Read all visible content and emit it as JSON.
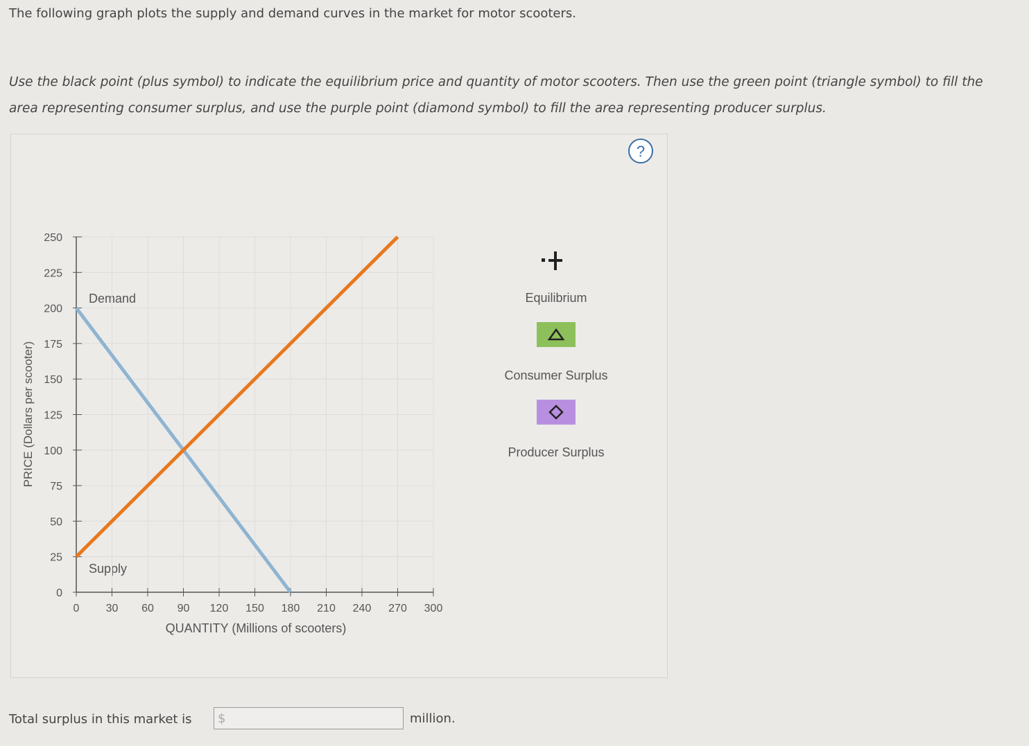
{
  "intro": "The following graph plots the supply and demand curves in the market for motor scooters.",
  "instructions": "Use the black point (plus symbol) to indicate the equilibrium price and quantity of motor scooters. Then use the green point (triangle symbol) to fill the area representing consumer surplus, and use the purple point (diamond symbol) to fill the area representing producer surplus.",
  "help": "?",
  "chart_data": {
    "type": "line",
    "x": [
      0,
      90,
      180,
      270
    ],
    "series": [
      {
        "name": "Demand",
        "color": "#8fb4d2",
        "values": [
          200,
          100,
          0,
          null
        ]
      },
      {
        "name": "Supply",
        "color": "#e8781e",
        "values": [
          25,
          100,
          175,
          250
        ]
      }
    ],
    "xlabel": "QUANTITY (Millions of scooters)",
    "ylabel": "PRICE (Dollars per scooter)",
    "xlim": [
      0,
      300
    ],
    "ylim": [
      0,
      250
    ],
    "xticks": [
      0,
      30,
      60,
      90,
      120,
      150,
      180,
      210,
      240,
      270,
      300
    ],
    "yticks": [
      0,
      25,
      50,
      75,
      100,
      125,
      150,
      175,
      200,
      225,
      250
    ],
    "grid": true
  },
  "tools": [
    {
      "label": "Equilibrium"
    },
    {
      "label": "Consumer Surplus"
    },
    {
      "label": "Producer Surplus"
    }
  ],
  "footer": {
    "text": "Total surplus in this market is",
    "currency": "$",
    "unit": "million."
  }
}
